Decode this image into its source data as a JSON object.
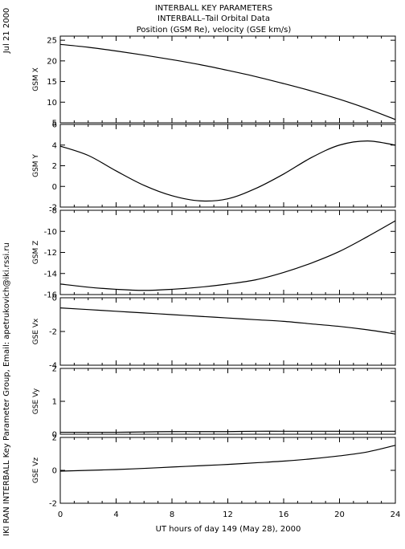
{
  "header": {
    "title_line1": "INTERBALL KEY PARAMETERS",
    "title_line2": "INTERBALL–Tail Orbital Data",
    "title_line3": "Position (GSM Re), velocity (GSE km/s)"
  },
  "side": {
    "date": "Jul 21 2000",
    "credit": "IKI RAN INTERBALL Key Parameter Group, Email: apetrukovich@iki.rssi.ru"
  },
  "chart_data": {
    "type": "line",
    "xlabel": "UT hours of day 149 (May 28), 2000",
    "xlim": [
      0,
      24
    ],
    "xticks": [
      0,
      4,
      8,
      12,
      16,
      20,
      24
    ],
    "panels": [
      {
        "name": "GSM X",
        "ylim": [
          5,
          26
        ],
        "yticks": [
          5,
          10,
          15,
          20,
          25
        ],
        "x": [
          0,
          2,
          4,
          6,
          8,
          10,
          12,
          14,
          16,
          18,
          20,
          22,
          24
        ],
        "y": [
          24.0,
          23.3,
          22.4,
          21.4,
          20.3,
          19.1,
          17.7,
          16.2,
          14.5,
          12.7,
          10.7,
          8.4,
          5.8
        ]
      },
      {
        "name": "GSM Y",
        "ylim": [
          -2,
          6
        ],
        "yticks": [
          -2,
          0,
          2,
          4,
          6
        ],
        "x": [
          0,
          2,
          4,
          6,
          8,
          10,
          12,
          14,
          16,
          18,
          20,
          22,
          24
        ],
        "y": [
          3.9,
          3.0,
          1.5,
          0.1,
          -0.9,
          -1.4,
          -1.2,
          -0.2,
          1.2,
          2.8,
          4.0,
          4.4,
          4.0
        ]
      },
      {
        "name": "GSM Z",
        "ylim": [
          -16,
          -8
        ],
        "yticks": [
          -16,
          -14,
          -12,
          -10,
          -8
        ],
        "x": [
          0,
          2,
          4,
          6,
          8,
          10,
          12,
          14,
          16,
          18,
          20,
          22,
          24
        ],
        "y": [
          -15.0,
          -15.3,
          -15.5,
          -15.6,
          -15.5,
          -15.3,
          -15.0,
          -14.6,
          -13.9,
          -13.0,
          -11.9,
          -10.5,
          -9.0
        ]
      },
      {
        "name": "GSE Vx",
        "ylim": [
          -4,
          0
        ],
        "yticks": [
          -4,
          -2,
          0
        ],
        "x": [
          0,
          2,
          4,
          6,
          8,
          10,
          12,
          14,
          16,
          18,
          20,
          22,
          24
        ],
        "y": [
          -0.6,
          -0.7,
          -0.8,
          -0.9,
          -1.0,
          -1.1,
          -1.2,
          -1.3,
          -1.4,
          -1.55,
          -1.7,
          -1.9,
          -2.15
        ]
      },
      {
        "name": "GSE Vy",
        "ylim": [
          0,
          2
        ],
        "yticks": [
          0,
          1,
          2
        ],
        "x": [
          0,
          2,
          4,
          6,
          8,
          10,
          12,
          14,
          16,
          18,
          20,
          22,
          24
        ],
        "y": [
          0.06,
          0.06,
          0.06,
          0.07,
          0.08,
          0.08,
          0.08,
          0.09,
          0.09,
          0.09,
          0.09,
          0.09,
          0.09
        ]
      },
      {
        "name": "GSE Vz",
        "ylim": [
          -2,
          2
        ],
        "yticks": [
          -2,
          0,
          2
        ],
        "x": [
          0,
          2,
          4,
          6,
          8,
          10,
          12,
          14,
          16,
          18,
          20,
          22,
          24
        ],
        "y": [
          -0.05,
          0.0,
          0.05,
          0.12,
          0.2,
          0.28,
          0.36,
          0.46,
          0.56,
          0.7,
          0.88,
          1.12,
          1.52
        ]
      }
    ]
  }
}
